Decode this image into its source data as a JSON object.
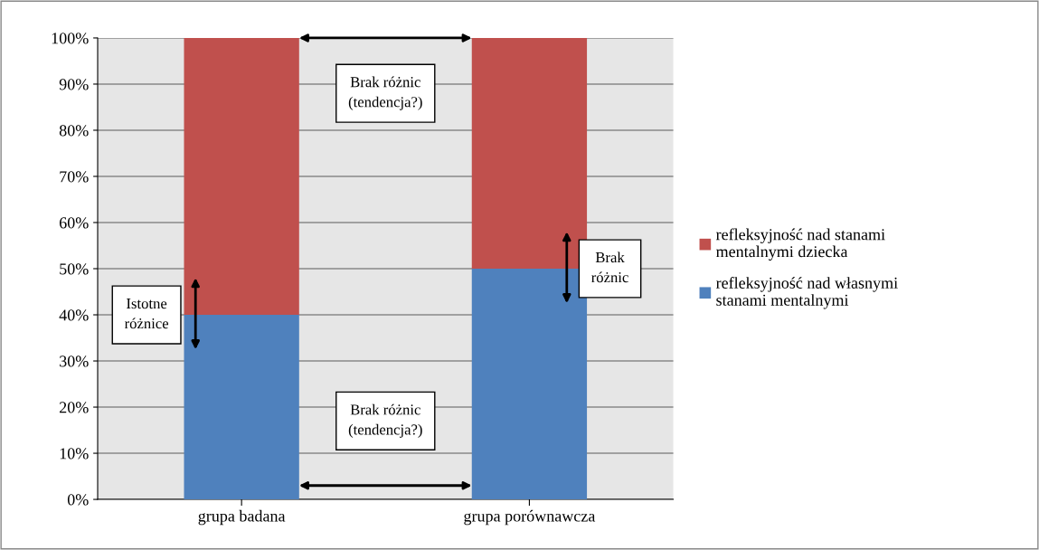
{
  "chart_data": {
    "type": "bar",
    "stacked": true,
    "categories": [
      "grupa badana",
      "grupa porównawcza"
    ],
    "series": [
      {
        "name": "refleksyjność nad własnymi stanami mentalnymi",
        "color": "#4f81bd",
        "values": [
          40,
          50
        ]
      },
      {
        "name": "refleksyjność nad stanami mentalnymi dziecka",
        "color": "#c0504d",
        "values": [
          60,
          50
        ]
      }
    ],
    "ylim": [
      0,
      100
    ],
    "yticks": [
      {
        "value": 0,
        "label": "0%"
      },
      {
        "value": 10,
        "label": "10%"
      },
      {
        "value": 20,
        "label": "20%"
      },
      {
        "value": 30,
        "label": "30%"
      },
      {
        "value": 40,
        "label": "40%"
      },
      {
        "value": 50,
        "label": "50%"
      },
      {
        "value": 60,
        "label": "60%"
      },
      {
        "value": 70,
        "label": "70%"
      },
      {
        "value": 80,
        "label": "80%"
      },
      {
        "value": 90,
        "label": "90%"
      },
      {
        "value": 100,
        "label": "100%"
      }
    ],
    "grid": "y",
    "legend": "right",
    "annotations": [
      "Brak różnic\n(tendencja?)",
      "Istotne\nróżnice",
      "Brak\nróżnic",
      "Brak różnic\n(tendencja?)"
    ]
  }
}
